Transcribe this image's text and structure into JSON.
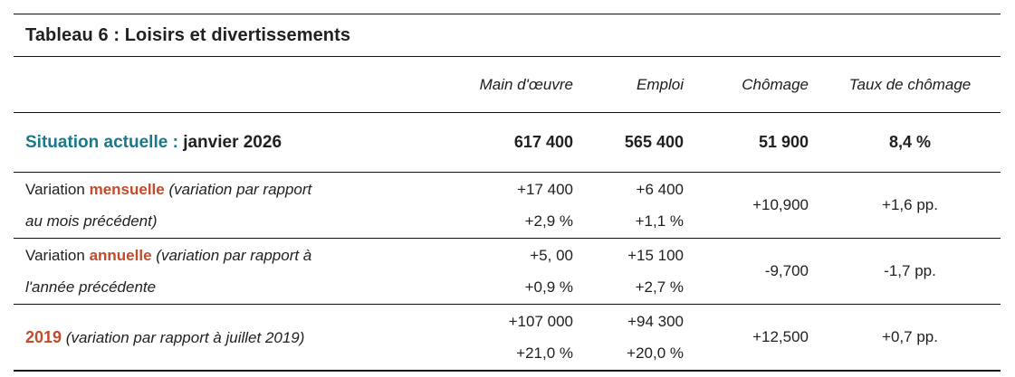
{
  "colors": {
    "accent_teal": "#17798b",
    "accent_orange": "#c14b2c",
    "rule_color": "#111111"
  },
  "table": {
    "title": "Tableau 6 : Loisirs et divertissements",
    "col_headers": [
      "Main d'œuvre",
      "Emploi",
      "Chômage",
      "Taux de chômage"
    ],
    "situation": {
      "label_accent": "Situation actuelle :",
      "label_bold": "janvier 2026",
      "main_doeuvre": "617 400",
      "emploi": "565 400",
      "chomage": "51 900",
      "taux": "8,4 %"
    },
    "rows": [
      {
        "label_start": "Variation",
        "label_keyword": "mensuelle",
        "label_note_line1": "(variation par rapport",
        "label_note_line2": "au mois précédent)",
        "main_doeuvre_abs": "+17 400",
        "main_doeuvre_pct": "+2,9 %",
        "emploi_abs": "+6 400",
        "emploi_pct": "+1,1 %",
        "chomage": "+10,900",
        "taux": "+1,6 pp."
      },
      {
        "label_start": "Variation",
        "label_keyword": "annuelle",
        "label_note_line1": "(variation par rapport à",
        "label_note_line2": "l'année précédente",
        "main_doeuvre_abs": "+5, 00",
        "main_doeuvre_pct": "+0,9 %",
        "emploi_abs": "+15 100",
        "emploi_pct": "+2,7 %",
        "chomage": "-9,700",
        "taux": "-1,7 pp."
      },
      {
        "label_keyword": "2019",
        "label_note_line1": "(variation par rapport à juillet 2019)",
        "main_doeuvre_abs": "+107 000",
        "main_doeuvre_pct": "+21,0 %",
        "emploi_abs": "+94 300",
        "emploi_pct": "+20,0 %",
        "chomage": "+12,500",
        "taux": "+0,7 pp."
      }
    ]
  }
}
